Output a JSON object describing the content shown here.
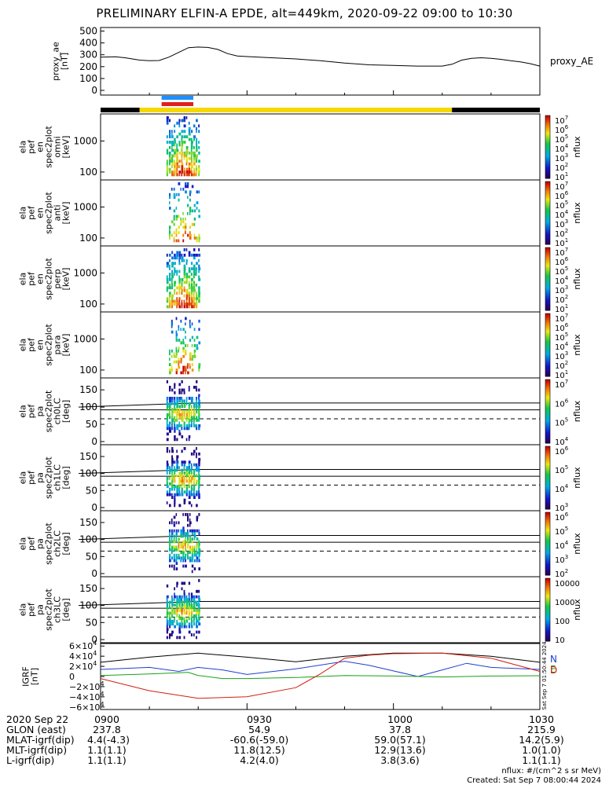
{
  "title": "PRELIMINARY ELFIN-A EPDE, alt=449km, 2020-09-22 09:00 to 10:30",
  "time_axis": {
    "start_min": 0,
    "end_min": 90
  },
  "colors": {
    "black": "#000000",
    "yellow": "#f5d800",
    "blue_bar": "#1e90ff",
    "red_bar": "#e02020",
    "bx": "#1f3fd0",
    "by": "#1aa01a",
    "bz": "#d02010"
  },
  "chart_data": [
    {
      "type": "line",
      "id": "proxy_ae",
      "ylabel": [
        "proxy_ae",
        "[nT]"
      ],
      "yticks": [
        0,
        100,
        200,
        300,
        400,
        500
      ],
      "ylim": [
        0,
        530
      ],
      "series_label": "proxy_AE",
      "x": [
        0,
        3,
        5,
        8,
        10,
        12,
        14,
        16,
        18,
        20,
        22,
        24,
        26,
        28,
        30,
        35,
        40,
        45,
        50,
        55,
        60,
        65,
        70,
        72,
        74,
        76,
        78,
        80,
        82,
        84,
        86,
        88,
        90
      ],
      "values": [
        280,
        283,
        275,
        255,
        250,
        252,
        280,
        320,
        360,
        365,
        362,
        345,
        310,
        290,
        285,
        275,
        265,
        250,
        230,
        215,
        210,
        205,
        205,
        220,
        255,
        270,
        275,
        270,
        262,
        250,
        240,
        225,
        205
      ]
    },
    {
      "type": "heatmap",
      "id": "energy_omni",
      "ylabel": [
        "ela",
        "pef",
        "en",
        "spec2plot",
        "omni",
        "[keV]"
      ],
      "yticks": [
        "100",
        "1000"
      ],
      "colorbar": {
        "label": "nflux",
        "ticks": [
          "10^1",
          "10^2",
          "10^3",
          "10^4",
          "10^5",
          "10^6",
          "10^7"
        ]
      },
      "active_window_min": [
        13.5,
        20.5
      ]
    },
    {
      "type": "heatmap",
      "id": "energy_anti",
      "ylabel": [
        "ela",
        "pef",
        "en",
        "spec2plot",
        "anti",
        "[keV]"
      ],
      "yticks": [
        "100",
        "1000"
      ],
      "colorbar": {
        "label": "nflux",
        "ticks": [
          "10^1",
          "10^2",
          "10^3",
          "10^4",
          "10^5",
          "10^6",
          "10^7"
        ]
      },
      "active_window_min": [
        14.0,
        20.5
      ]
    },
    {
      "type": "heatmap",
      "id": "energy_perp",
      "ylabel": [
        "ela",
        "pef",
        "en",
        "spec2plot",
        "perp",
        "[keV]"
      ],
      "yticks": [
        "100",
        "1000"
      ],
      "colorbar": {
        "label": "nflux",
        "ticks": [
          "10^1",
          "10^2",
          "10^3",
          "10^4",
          "10^5",
          "10^6",
          "10^7"
        ]
      },
      "active_window_min": [
        13.5,
        20.5
      ]
    },
    {
      "type": "heatmap",
      "id": "energy_para",
      "ylabel": [
        "ela",
        "pef",
        "en",
        "spec2plot",
        "para",
        "[keV]"
      ],
      "yticks": [
        "100",
        "1000"
      ],
      "colorbar": {
        "label": "nflux",
        "ticks": [
          "10^1",
          "10^2",
          "10^3",
          "10^4",
          "10^5",
          "10^6",
          "10^7"
        ]
      },
      "active_window_min": [
        14.0,
        20.5
      ]
    },
    {
      "type": "heatmap",
      "id": "pa_ch0",
      "ylabel": [
        "ela",
        "pef",
        "pa",
        "spec2plot",
        "ch0LC",
        "[deg]"
      ],
      "yticks": [
        "0",
        "50",
        "100",
        "150"
      ],
      "ylim": [
        0,
        180
      ],
      "colorbar": {
        "label": "nflux",
        "ticks": [
          "10^4",
          "10^5",
          "10^6",
          "10^7"
        ]
      },
      "active_window_min": [
        13.5,
        20.5
      ]
    },
    {
      "type": "heatmap",
      "id": "pa_ch1",
      "ylabel": [
        "ela",
        "pef",
        "pa",
        "spec2plot",
        "ch1LC",
        "[deg]"
      ],
      "yticks": [
        "0",
        "50",
        "100",
        "150"
      ],
      "ylim": [
        0,
        180
      ],
      "colorbar": {
        "label": "nflux",
        "ticks": [
          "10^3",
          "10^4",
          "10^5",
          "10^6"
        ]
      },
      "active_window_min": [
        13.5,
        20.5
      ]
    },
    {
      "type": "heatmap",
      "id": "pa_ch2",
      "ylabel": [
        "ela",
        "pef",
        "pa",
        "spec2plot",
        "ch2LC",
        "[deg]"
      ],
      "yticks": [
        "0",
        "50",
        "100",
        "150"
      ],
      "ylim": [
        0,
        180
      ],
      "colorbar": {
        "label": "nflux",
        "ticks": [
          "10^2",
          "10^3",
          "10^4",
          "10^5",
          "10^6"
        ]
      },
      "active_window_min": [
        14.0,
        20.5
      ]
    },
    {
      "type": "heatmap",
      "id": "pa_ch3",
      "ylabel": [
        "ela",
        "pef",
        "pa",
        "spec2plot",
        "ch3LC",
        "[deg]"
      ],
      "yticks": [
        "0",
        "50",
        "100",
        "150"
      ],
      "ylim": [
        0,
        180
      ],
      "colorbar": {
        "label": "nflux",
        "ticks": [
          "10",
          "100",
          "1000",
          "10000"
        ]
      },
      "active_window_min": [
        13.5,
        20.5
      ]
    },
    {
      "type": "line",
      "id": "igrf",
      "ylabel": [
        "IGRF",
        "[nT]"
      ],
      "yticks": [
        "6×10^4",
        "4×10^4",
        "2×10^4",
        "0",
        "−2×10^4",
        "−4×10^4",
        "−6×10^4"
      ],
      "ylim": [
        -65000,
        65000
      ],
      "legend": [
        "N",
        "E",
        "D"
      ],
      "series": [
        {
          "name": "total",
          "x": [
            0,
            10,
            20,
            30,
            40,
            50,
            60,
            70,
            80,
            90
          ],
          "values": [
            28000,
            38000,
            46000,
            38000,
            29000,
            40000,
            46000,
            46000,
            40000,
            28000
          ]
        },
        {
          "name": "N",
          "x": [
            0,
            10,
            16,
            20,
            25,
            30,
            40,
            50,
            55,
            60,
            65,
            70,
            75,
            80,
            90
          ],
          "values": [
            14000,
            18000,
            10000,
            18000,
            13000,
            4000,
            15000,
            30000,
            22000,
            11000,
            0,
            13000,
            26000,
            18000,
            14000
          ]
        },
        {
          "name": "E",
          "x": [
            0,
            10,
            18,
            20,
            25,
            30,
            40,
            50,
            60,
            70,
            80,
            90
          ],
          "values": [
            2000,
            5000,
            8000,
            2000,
            -4000,
            -4000,
            -2000,
            2000,
            1000,
            -1000,
            1000,
            1500
          ]
        },
        {
          "name": "D",
          "x": [
            0,
            10,
            20,
            30,
            40,
            45,
            50,
            55,
            60,
            70,
            80,
            90
          ],
          "values": [
            -4000,
            -28000,
            -43000,
            -40000,
            -22000,
            5000,
            36000,
            42000,
            45000,
            46000,
            36000,
            10000
          ]
        }
      ]
    }
  ],
  "orbit_table": {
    "rows": [
      {
        "label": "2020 Sep 22",
        "values": [
          "0900",
          "0930",
          "1000",
          "1030"
        ]
      },
      {
        "label": "GLON (east)",
        "values": [
          "237.8",
          "54.9",
          "37.8",
          "215.9"
        ]
      },
      {
        "label": "MLAT-igrf(dip)",
        "values": [
          "4.4(-4.3)",
          "-60.6(-59.0)",
          "59.0(57.1)",
          "14.2(5.9)"
        ]
      },
      {
        "label": "MLT-igrf(dip)",
        "values": [
          "1.1(1.1)",
          "11.8(12.5)",
          "12.9(13.6)",
          "1.0(1.0)"
        ]
      },
      {
        "label": "L-igrf(dip)",
        "values": [
          "1.1(1.1)",
          "4.2(4.0)",
          "3.8(3.6)",
          "1.1(1.1)"
        ]
      }
    ]
  },
  "footer": {
    "units": "nflux: #/(cm^2 s sr MeV)",
    "created": "Created: Sat Sep  7 08:00:44 2024",
    "side_stamp": "Sat Sep  7 01:50:44 2024"
  }
}
